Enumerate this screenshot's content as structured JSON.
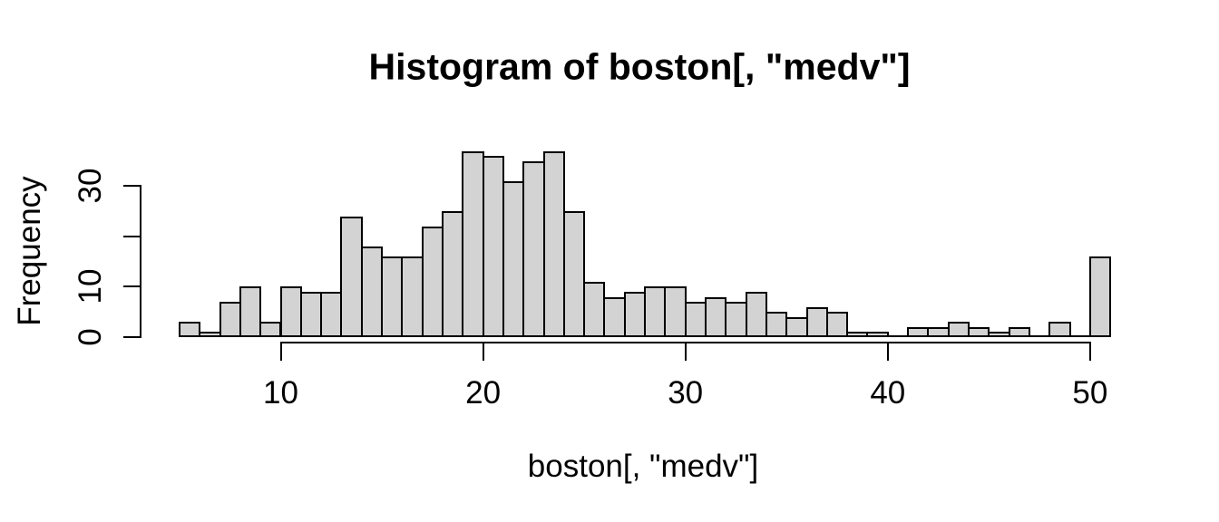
{
  "chart_data": {
    "type": "bar",
    "subtype": "histogram",
    "title": "Histogram of boston[, \"medv\"]",
    "xlabel": "boston[, \"medv\"]",
    "ylabel": "Frequency",
    "bin_start": 5,
    "bin_width": 1,
    "counts": [
      3,
      1,
      7,
      10,
      3,
      10,
      9,
      9,
      24,
      18,
      16,
      16,
      22,
      25,
      37,
      36,
      31,
      35,
      37,
      25,
      11,
      8,
      9,
      10,
      10,
      7,
      8,
      7,
      9,
      5,
      4,
      6,
      5,
      1,
      1,
      0,
      2,
      2,
      3,
      2,
      1,
      2,
      0,
      3,
      0,
      16
    ],
    "total_count": 506,
    "xlim": [
      5,
      51
    ],
    "ylim": [
      0,
      37
    ],
    "x_ticks": [
      {
        "value": 10,
        "label": "10"
      },
      {
        "value": 20,
        "label": "20"
      },
      {
        "value": 30,
        "label": "30"
      },
      {
        "value": 40,
        "label": "40"
      },
      {
        "value": 50,
        "label": "50"
      }
    ],
    "y_ticks": [
      {
        "value": 0,
        "label": "0"
      },
      {
        "value": 10,
        "label": "10"
      },
      {
        "value": 20,
        "label": ""
      },
      {
        "value": 30,
        "label": "30"
      }
    ],
    "grid": false,
    "legend": null,
    "colors": {
      "bar_fill": "#d3d3d3",
      "bar_border": "#000000",
      "axis": "#000000",
      "text": "#000000",
      "background": "#ffffff"
    }
  }
}
